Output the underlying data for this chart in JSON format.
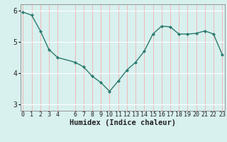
{
  "x": [
    0,
    1,
    2,
    3,
    4,
    6,
    7,
    8,
    9,
    10,
    11,
    12,
    13,
    14,
    15,
    16,
    17,
    18,
    19,
    20,
    21,
    22,
    23
  ],
  "y": [
    5.95,
    5.85,
    5.35,
    4.75,
    4.5,
    4.35,
    4.2,
    3.9,
    3.7,
    3.42,
    3.75,
    4.1,
    4.35,
    4.7,
    5.25,
    5.5,
    5.48,
    5.25,
    5.25,
    5.27,
    5.35,
    5.25,
    4.6
  ],
  "line_color": "#2a7a6e",
  "marker": "D",
  "marker_size": 2.2,
  "bg_color": "#d8f0ee",
  "hgrid_color": "#ffffff",
  "vgrid_color": "#f0b8b8",
  "xlabel": "Humidex (Indice chaleur)",
  "ylim": [
    2.8,
    6.2
  ],
  "xlim": [
    -0.3,
    23.3
  ],
  "yticks": [
    3,
    4,
    5,
    6
  ],
  "xticks": [
    0,
    1,
    2,
    3,
    4,
    6,
    7,
    8,
    9,
    10,
    11,
    12,
    13,
    14,
    15,
    16,
    17,
    18,
    19,
    20,
    21,
    22,
    23
  ],
  "xtick_labels": [
    "0",
    "1",
    "2",
    "3",
    "4",
    "6",
    "7",
    "8",
    "9",
    "10",
    "11",
    "12",
    "13",
    "14",
    "15",
    "16",
    "17",
    "18",
    "19",
    "20",
    "21",
    "22",
    "23"
  ],
  "font_size_xlabel": 7.5,
  "font_size_ticks": 6.0,
  "line_width": 1.0,
  "spine_color": "#888888"
}
